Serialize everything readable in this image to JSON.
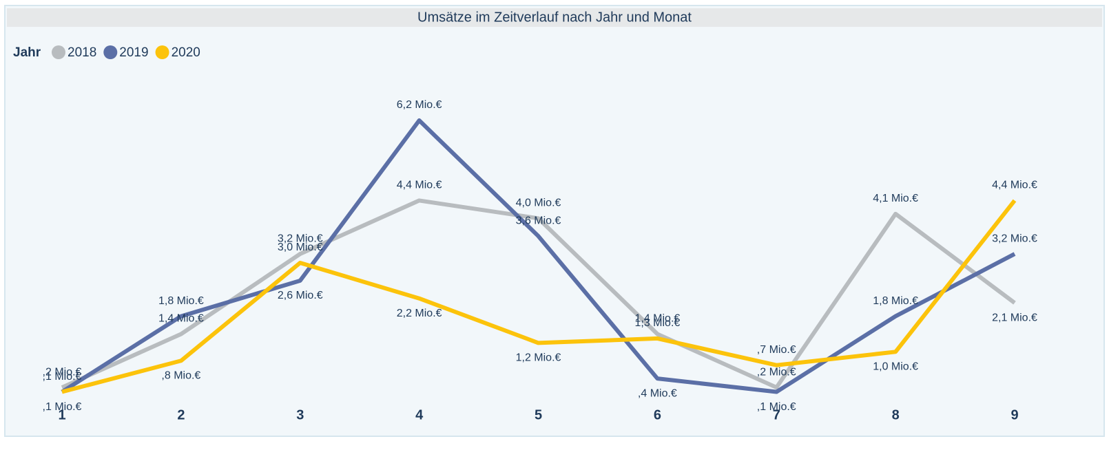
{
  "chart_data": {
    "type": "line",
    "title": "Umsätze im Zeitverlauf nach Jahr und Monat",
    "legend_title": "Jahr",
    "categories": [
      "1",
      "2",
      "3",
      "4",
      "5",
      "6",
      "7",
      "8",
      "9"
    ],
    "series": [
      {
        "name": "2018",
        "color": "#b8bcbf",
        "values": [
          0.2,
          1.4,
          3.2,
          4.4,
          4.0,
          1.4,
          0.2,
          4.1,
          2.1
        ],
        "value_labels": [
          ",2 Mio.€",
          "1,4 Mio.€",
          "3,2 Mio.€",
          "4,4 Mio.€",
          "4,0 Mio.€",
          "1,4 Mio.€",
          ",2 Mio.€",
          "4,1 Mio.€",
          "2,1 Mio.€"
        ]
      },
      {
        "name": "2019",
        "color": "#5b6fa6",
        "values": [
          0.1,
          1.8,
          2.6,
          6.2,
          3.6,
          0.4,
          0.1,
          1.8,
          3.2
        ],
        "value_labels": [
          ",1 Mio.€",
          "1,8 Mio.€",
          "2,6 Mio.€",
          "6,2 Mio.€",
          "3,6 Mio.€",
          ",4 Mio.€",
          ",1 Mio.€",
          "1,8 Mio.€",
          "3,2 Mio.€"
        ]
      },
      {
        "name": "2020",
        "color": "#fcc30b",
        "values": [
          0.1,
          0.8,
          3.0,
          2.2,
          1.2,
          1.3,
          0.7,
          1.0,
          4.4
        ],
        "value_labels": [
          ",1 Mio.€",
          ",8 Mio.€",
          "3,0 Mio.€",
          "2,2 Mio.€",
          "1,2 Mio.€",
          "1,3 Mio.€",
          ",7 Mio.€",
          "1,0 Mio.€",
          "4,4 Mio.€"
        ]
      }
    ]
  }
}
